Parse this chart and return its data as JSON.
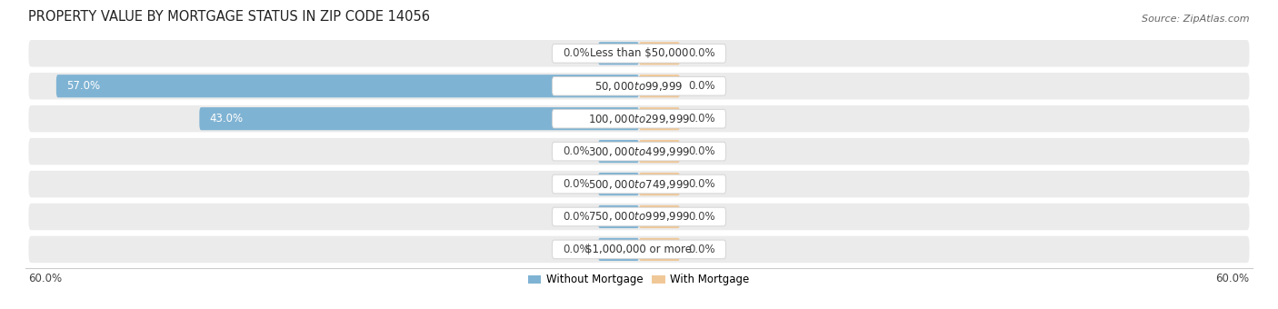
{
  "title": "PROPERTY VALUE BY MORTGAGE STATUS IN ZIP CODE 14056",
  "source": "Source: ZipAtlas.com",
  "categories": [
    "Less than $50,000",
    "$50,000 to $99,999",
    "$100,000 to $299,999",
    "$300,000 to $499,999",
    "$500,000 to $749,999",
    "$750,000 to $999,999",
    "$1,000,000 or more"
  ],
  "without_mortgage": [
    0.0,
    57.0,
    43.0,
    0.0,
    0.0,
    0.0,
    0.0
  ],
  "with_mortgage": [
    0.0,
    0.0,
    0.0,
    0.0,
    0.0,
    0.0,
    0.0
  ],
  "xlim": 60.0,
  "color_without": "#7fb3d3",
  "color_with": "#f0c898",
  "row_bg_color": "#ebebeb",
  "title_fontsize": 10.5,
  "source_fontsize": 8,
  "label_fontsize": 8.5,
  "value_fontsize": 8.5,
  "axis_label_fontsize": 8.5,
  "legend_fontsize": 8.5,
  "x_axis_label_left": "60.0%",
  "x_axis_label_right": "60.0%",
  "stub_size": 4.0
}
